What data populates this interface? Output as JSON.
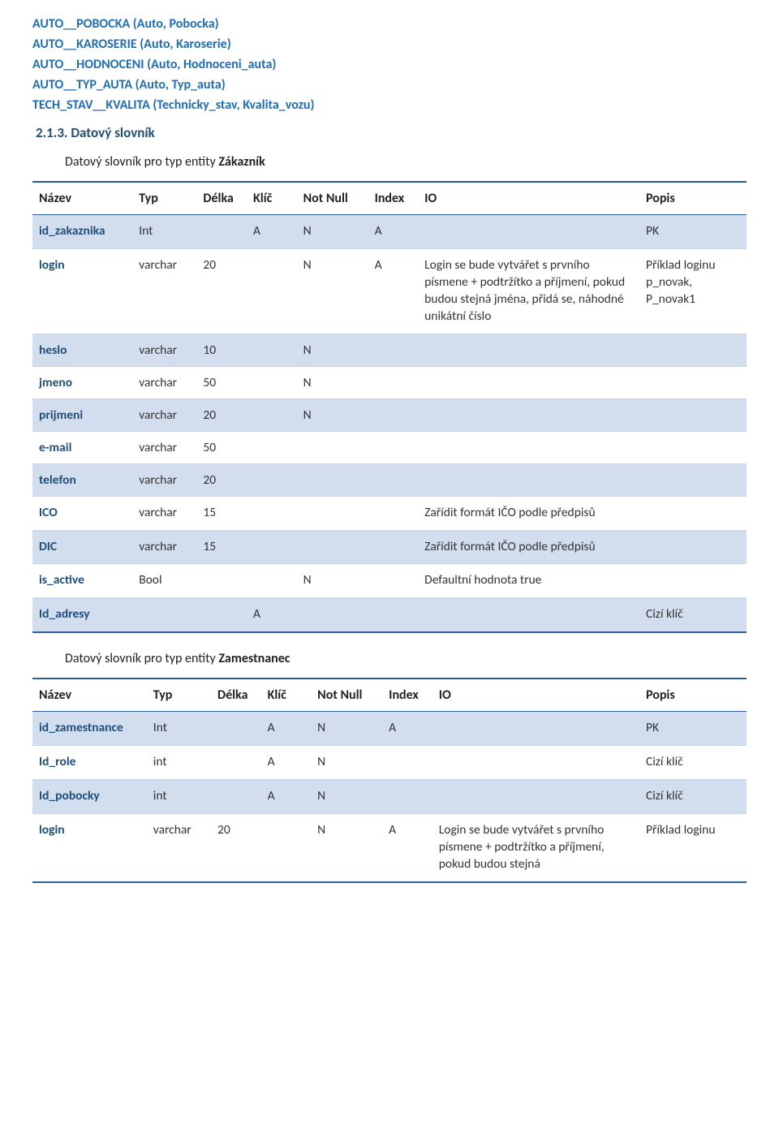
{
  "entities": [
    "AUTO__POBOCKA (Auto, Pobocka)",
    "AUTO__KAROSERIE (Auto, Karoserie)",
    "AUTO__HODNOCENI (Auto, Hodnoceni_auta)",
    "AUTO__TYP_AUTA (Auto, Typ_auta)",
    "TECH_STAV__KVALITA (Technicky_stav, Kvalita_vozu)"
  ],
  "section_number": "2.1.3.  Datový slovník",
  "table1": {
    "caption_prefix": "Datový slovník pro typ entity ",
    "caption_bold": "Zákazník",
    "headers": [
      "Název",
      "Typ",
      "Délka",
      "Klíč",
      "Not Null",
      "Index",
      "IO",
      "Popis"
    ],
    "rows": [
      {
        "shade": true,
        "c": [
          "id_zakaznika",
          "Int",
          "",
          "A",
          "N",
          "A",
          "",
          "PK"
        ]
      },
      {
        "shade": false,
        "c": [
          "login",
          "varchar",
          "20",
          "",
          "N",
          "A",
          "Login se bude vytvářet s prvního písmene + podtržítko a příjmení, pokud budou stejná jména, přidá se, náhodné unikátní číslo",
          "Příklad loginu p_novak,\nP_novak1"
        ]
      },
      {
        "shade": true,
        "c": [
          "heslo",
          "varchar",
          "10",
          "",
          "N",
          "",
          "",
          ""
        ]
      },
      {
        "shade": false,
        "c": [
          "jmeno",
          "varchar",
          "50",
          "",
          "N",
          "",
          "",
          ""
        ]
      },
      {
        "shade": true,
        "c": [
          "prijmeni",
          "varchar",
          "20",
          "",
          "N",
          "",
          "",
          ""
        ]
      },
      {
        "shade": false,
        "c": [
          "e-mail",
          "varchar",
          "50",
          "",
          "",
          "",
          "",
          ""
        ]
      },
      {
        "shade": true,
        "c": [
          "telefon",
          "varchar",
          "20",
          "",
          "",
          "",
          "",
          ""
        ]
      },
      {
        "shade": false,
        "c": [
          "ICO",
          "varchar",
          "15",
          "",
          "",
          "",
          "Zařídit formát IČO podle předpisů",
          ""
        ]
      },
      {
        "shade": true,
        "c": [
          "DIC",
          "varchar",
          "15",
          "",
          "",
          "",
          "Zařídit formát IČO podle předpisů",
          ""
        ]
      },
      {
        "shade": false,
        "c": [
          "is_active",
          "Bool",
          "",
          "",
          "N",
          "",
          "Defaultní hodnota true",
          ""
        ]
      },
      {
        "shade": true,
        "c": [
          "Id_adresy",
          "",
          "",
          "A",
          "",
          "",
          "",
          "Cizí klíč"
        ]
      }
    ],
    "col_widths": [
      "14%",
      "9%",
      "7%",
      "7%",
      "10%",
      "7%",
      "31%",
      "15%"
    ]
  },
  "table2": {
    "caption_prefix": "Datový slovník pro typ entity ",
    "caption_bold": "Zamestnanec",
    "headers": [
      "Název",
      "Typ",
      "Délka",
      "Klíč",
      "Not Null",
      "Index",
      "IO",
      "Popis"
    ],
    "rows": [
      {
        "shade": true,
        "c": [
          "id_zamestnance",
          "Int",
          "",
          "A",
          "N",
          "A",
          "",
          "PK"
        ]
      },
      {
        "shade": false,
        "c": [
          "Id_role",
          "int",
          "",
          "A",
          "N",
          "",
          "",
          "Cizí klíč"
        ]
      },
      {
        "shade": true,
        "c": [
          "Id_pobocky",
          "int",
          "",
          "A",
          "N",
          "",
          "",
          "Cizí klíč"
        ]
      },
      {
        "shade": false,
        "c": [
          "login",
          "varchar",
          "20",
          "",
          "N",
          "A",
          "Login se bude vytvářet s prvního písmene + podtržítko a příjmení, pokud budou stejná",
          "Příklad loginu"
        ]
      }
    ],
    "col_widths": [
      "16%",
      "9%",
      "7%",
      "7%",
      "10%",
      "7%",
      "29%",
      "15%"
    ]
  },
  "colors": {
    "link": "#1f6db5",
    "section": "#1f4e79",
    "border": "#2e5e9c",
    "shade": "#d2dded",
    "rowname": "#1f4e79"
  }
}
